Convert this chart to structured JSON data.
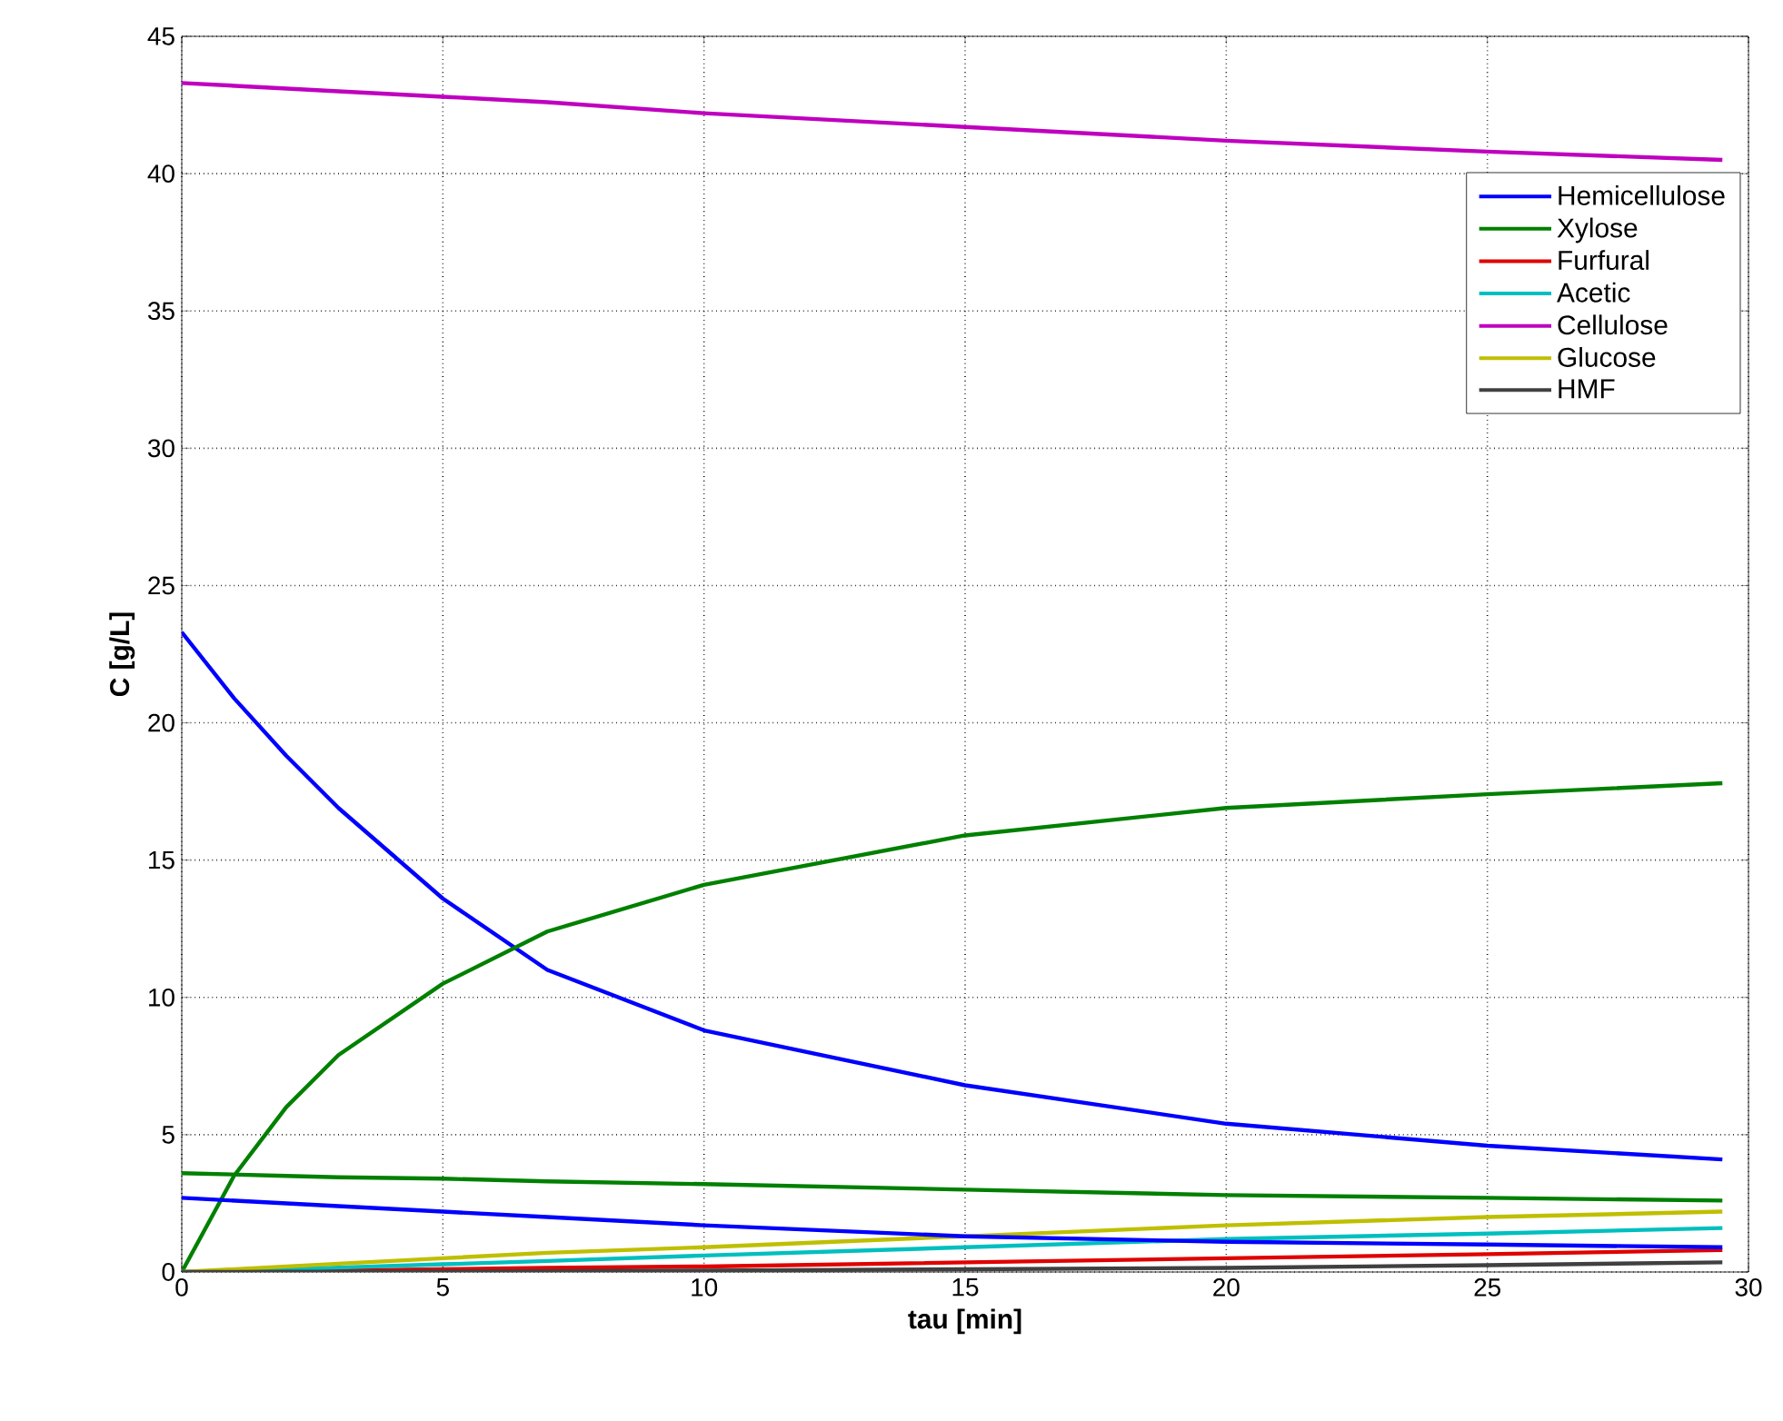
{
  "chart_data": {
    "type": "line",
    "xlabel": "tau [min]",
    "ylabel": "C [g/L]",
    "xlim": [
      0,
      30
    ],
    "ylim": [
      0,
      45
    ],
    "xticks": [
      0,
      5,
      10,
      15,
      20,
      25,
      30
    ],
    "yticks": [
      0,
      5,
      10,
      15,
      20,
      25,
      30,
      35,
      40,
      45
    ],
    "grid": true,
    "legend": "top right",
    "line_style": "solid",
    "marker": "none",
    "x": [
      0,
      1,
      2,
      3,
      5,
      7,
      10,
      15,
      20,
      25,
      29.5
    ],
    "series": [
      {
        "name": "Hemicellulose",
        "color": "#0000ff",
        "values": [
          23.3,
          20.9,
          18.8,
          16.9,
          13.6,
          11.0,
          8.8,
          6.8,
          5.4,
          4.6,
          4.1
        ]
      },
      {
        "name": "Xylose",
        "color": "#008000",
        "values": [
          0,
          3.5,
          6.0,
          7.9,
          10.5,
          12.4,
          14.1,
          15.9,
          16.9,
          17.4,
          17.8
        ]
      },
      {
        "name": "Furfural",
        "color": "#e00000",
        "values": [
          null,
          null,
          0.03,
          0.05,
          0.1,
          0.15,
          0.2,
          0.35,
          0.5,
          0.65,
          0.8
        ]
      },
      {
        "name": "Acetic",
        "color": "#00bfbf",
        "values": [
          0,
          0.05,
          0.1,
          0.16,
          0.28,
          0.4,
          0.6,
          0.9,
          1.2,
          1.4,
          1.6
        ]
      },
      {
        "name": "Cellulose",
        "color": "#bf00bf",
        "values": [
          43.3,
          43.2,
          43.1,
          43.0,
          42.8,
          42.6,
          42.2,
          41.7,
          41.2,
          40.8,
          40.5
        ]
      },
      {
        "name": "Glucose",
        "color": "#bfbf00",
        "values": [
          0,
          0.1,
          0.2,
          0.3,
          0.5,
          0.7,
          0.9,
          1.3,
          1.7,
          2.0,
          2.2
        ]
      },
      {
        "name": "HMF",
        "color": "#404040",
        "values": [
          0,
          0,
          0.01,
          0.01,
          0.02,
          0.03,
          0.05,
          0.1,
          0.15,
          0.25,
          0.35
        ]
      },
      {
        "color": "#0000ff",
        "values": [
          2.7,
          2.6,
          2.5,
          2.4,
          2.2,
          2.0,
          1.7,
          1.3,
          1.1,
          1.0,
          0.9
        ]
      },
      {
        "color": "#008000",
        "values": [
          3.6,
          3.55,
          3.5,
          3.45,
          3.4,
          3.3,
          3.2,
          3.0,
          2.8,
          2.7,
          2.6
        ]
      }
    ]
  }
}
